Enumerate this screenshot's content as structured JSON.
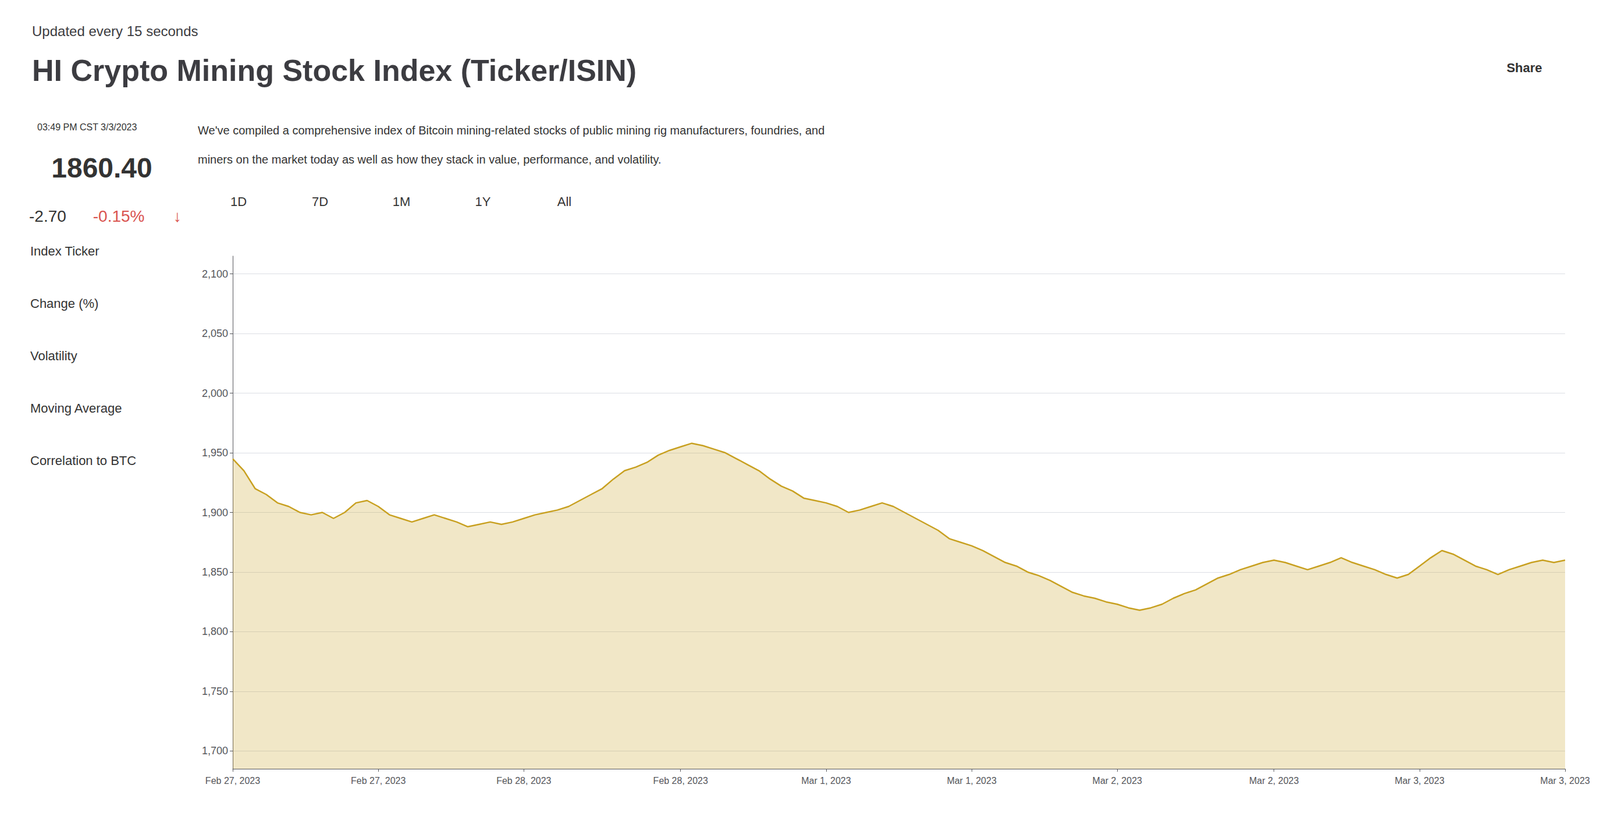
{
  "chart_data": {
    "type": "area",
    "title": "HI Crypto Mining Stock Index (Ticker/ISIN)",
    "subtitle": "Updated every 15 seconds",
    "annotations": [
      "Share",
      "03:49 PM CST 3/3/2023",
      "1860.40",
      "-2.70",
      " -0.15%",
      "↓",
      "Index Ticker",
      "Change (%)",
      "Volatility",
      "Moving Average",
      "Correlation to BTC",
      "We've compiled a comprehensive index of Bitcoin mining-related stocks of public mining rig manufacturers, foundries, and",
      "miners on the market today as well as how they stack in value, performance, and volatility.",
      "1D",
      "7D",
      "1M",
      "1Y",
      "All"
    ],
    "categories": [
      "Feb 27, 2023",
      null,
      null,
      null,
      null,
      null,
      null,
      null,
      null,
      null,
      null,
      null,
      null,
      "Feb 27, 2023",
      null,
      null,
      null,
      null,
      null,
      null,
      null,
      null,
      null,
      null,
      null,
      null,
      "Feb 28, 2023",
      null,
      null,
      null,
      null,
      null,
      null,
      null,
      null,
      null,
      null,
      null,
      null,
      null,
      "Feb 28, 2023",
      null,
      null,
      null,
      null,
      null,
      null,
      null,
      null,
      null,
      null,
      null,
      null,
      "Mar 1, 2023",
      null,
      null,
      null,
      null,
      null,
      null,
      null,
      null,
      null,
      null,
      null,
      null,
      "Mar 1, 2023",
      null,
      null,
      null,
      null,
      null,
      null,
      null,
      null,
      null,
      null,
      null,
      null,
      "Mar 2, 2023",
      null,
      null,
      null,
      null,
      null,
      null,
      null,
      null,
      null,
      null,
      null,
      null,
      null,
      "Mar 2, 2023",
      null,
      null,
      null,
      null,
      null,
      null,
      null,
      null,
      null,
      null,
      null,
      null,
      "Mar 3, 2023",
      null,
      null,
      null,
      null,
      null,
      null,
      null,
      null,
      null,
      null,
      null,
      null,
      "Mar 3, 2023"
    ],
    "values": [
      1945,
      1935,
      1920,
      1915,
      1908,
      1905,
      1900,
      1898,
      1900,
      1895,
      1900,
      1908,
      1910,
      1905,
      1898,
      1895,
      1892,
      1895,
      1898,
      1895,
      1892,
      1888,
      1890,
      1892,
      1890,
      1892,
      1895,
      1898,
      1900,
      1902,
      1905,
      1910,
      1915,
      1920,
      1928,
      1935,
      1938,
      1942,
      1948,
      1952,
      1955,
      1958,
      1956,
      1953,
      1950,
      1945,
      1940,
      1935,
      1928,
      1922,
      1918,
      1912,
      1910,
      1908,
      1905,
      1900,
      1902,
      1905,
      1908,
      1905,
      1900,
      1895,
      1890,
      1885,
      1878,
      1875,
      1872,
      1868,
      1863,
      1858,
      1855,
      1850,
      1847,
      1843,
      1838,
      1833,
      1830,
      1828,
      1825,
      1823,
      1820,
      1818,
      1820,
      1823,
      1828,
      1832,
      1835,
      1840,
      1845,
      1848,
      1852,
      1855,
      1858,
      1860,
      1858,
      1855,
      1852,
      1855,
      1858,
      1862,
      1858,
      1855,
      1852,
      1848,
      1845,
      1848,
      1855,
      1862,
      1868,
      1865,
      1860,
      1855,
      1852,
      1848,
      1852,
      1855,
      1858,
      1860,
      1858,
      1860
    ],
    "color": "#c8a020",
    "ylim": [
      1685,
      2115
    ],
    "yticks": [
      {
        "value": 1700,
        "label": "1,700"
      },
      {
        "value": 1750,
        "label": "1,750"
      },
      {
        "value": 1800,
        "label": "1,800"
      },
      {
        "value": 1850,
        "label": "1,850"
      },
      {
        "value": 1900,
        "label": "1,900"
      },
      {
        "value": 1950,
        "label": "1,950"
      },
      {
        "value": 2000,
        "label": "2,000"
      },
      {
        "value": 2050,
        "label": "2,050"
      },
      {
        "value": 2100,
        "label": "2,100"
      }
    ],
    "grid": true
  }
}
